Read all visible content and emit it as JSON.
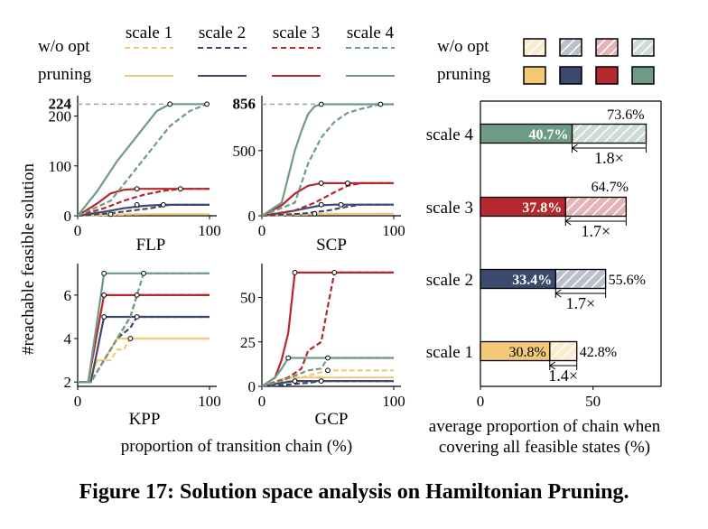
{
  "legend": {
    "scale_labels": [
      "scale 1",
      "scale 2",
      "scale 3",
      "scale 4"
    ],
    "row_labels": [
      "w/o opt",
      "pruning"
    ],
    "bar_row_labels": [
      "w/o opt",
      "pruning"
    ]
  },
  "colors": {
    "scale 1": "#f2c978",
    "scale 2": "#3b4a6e",
    "scale 3": "#b5282e",
    "scale 4": "#6f9b86",
    "ref_line": "#a0a0a0"
  },
  "chart_data": [
    {
      "type": "line",
      "id": "FLP",
      "title": "FLP",
      "ylabel": "#reachable feasible solution",
      "xlim": [
        0,
        100
      ],
      "ylim": [
        0,
        230
      ],
      "xticks": [
        "0",
        "100"
      ],
      "yticks": [
        "0",
        "100",
        "200"
      ],
      "ref_value": 224,
      "ref_label": "224",
      "series": [
        {
          "name": "scale 1",
          "variant": "w/o opt",
          "x": [
            0,
            30,
            60,
            100
          ],
          "y": [
            0,
            2,
            3,
            3
          ]
        },
        {
          "name": "scale 1",
          "variant": "pruning",
          "x": [
            0,
            20,
            40,
            100
          ],
          "y": [
            0,
            2,
            3,
            3
          ]
        },
        {
          "name": "scale 2",
          "variant": "w/o opt",
          "x": [
            0,
            25,
            40,
            55,
            70,
            100
          ],
          "y": [
            0,
            5,
            10,
            15,
            22,
            22
          ]
        },
        {
          "name": "scale 2",
          "variant": "pruning",
          "x": [
            0,
            20,
            35,
            50,
            65,
            100
          ],
          "y": [
            0,
            8,
            15,
            20,
            22,
            22
          ]
        },
        {
          "name": "scale 3",
          "variant": "w/o opt",
          "x": [
            0,
            20,
            35,
            50,
            65,
            78,
            100
          ],
          "y": [
            0,
            15,
            30,
            42,
            50,
            54,
            54
          ]
        },
        {
          "name": "scale 3",
          "variant": "pruning",
          "x": [
            0,
            15,
            25,
            35,
            45,
            100
          ],
          "y": [
            0,
            25,
            45,
            52,
            54,
            54
          ]
        },
        {
          "name": "scale 4",
          "variant": "w/o opt",
          "x": [
            0,
            25,
            40,
            55,
            70,
            85,
            98,
            100
          ],
          "y": [
            0,
            30,
            80,
            130,
            180,
            210,
            224,
            224
          ]
        },
        {
          "name": "scale 4",
          "variant": "pruning",
          "x": [
            0,
            15,
            30,
            45,
            60,
            70,
            100
          ],
          "y": [
            0,
            50,
            110,
            160,
            210,
            224,
            224
          ]
        }
      ],
      "markers": [
        {
          "x": 25,
          "y": 3
        },
        {
          "x": 65,
          "y": 22
        },
        {
          "x": 45,
          "y": 22
        },
        {
          "x": 78,
          "y": 54
        },
        {
          "x": 45,
          "y": 54
        },
        {
          "x": 98,
          "y": 224
        },
        {
          "x": 70,
          "y": 224
        }
      ]
    },
    {
      "type": "line",
      "id": "SCP",
      "title": "SCP",
      "ylabel": "",
      "xlim": [
        0,
        100
      ],
      "ylim": [
        0,
        880
      ],
      "xticks": [
        "0",
        "100"
      ],
      "yticks": [
        "0",
        "500"
      ],
      "ref_value": 856,
      "ref_label": "856",
      "series": [
        {
          "name": "scale 1",
          "variant": "w/o opt",
          "x": [
            0,
            30,
            60,
            100
          ],
          "y": [
            0,
            8,
            15,
            15
          ]
        },
        {
          "name": "scale 1",
          "variant": "pruning",
          "x": [
            0,
            20,
            40,
            100
          ],
          "y": [
            0,
            10,
            15,
            15
          ]
        },
        {
          "name": "scale 2",
          "variant": "w/o opt",
          "x": [
            0,
            30,
            50,
            65,
            75,
            100
          ],
          "y": [
            0,
            15,
            40,
            70,
            85,
            85
          ]
        },
        {
          "name": "scale 2",
          "variant": "pruning",
          "x": [
            0,
            20,
            35,
            45,
            55,
            100
          ],
          "y": [
            0,
            30,
            60,
            80,
            85,
            85
          ]
        },
        {
          "name": "scale 3",
          "variant": "w/o opt",
          "x": [
            0,
            25,
            40,
            55,
            65,
            75,
            100
          ],
          "y": [
            0,
            40,
            100,
            180,
            230,
            250,
            250
          ]
        },
        {
          "name": "scale 3",
          "variant": "pruning",
          "x": [
            0,
            15,
            25,
            35,
            45,
            100
          ],
          "y": [
            0,
            80,
            170,
            230,
            250,
            250
          ]
        },
        {
          "name": "scale 4",
          "variant": "w/o opt",
          "x": [
            0,
            25,
            35,
            45,
            55,
            65,
            75,
            90,
            100
          ],
          "y": [
            0,
            100,
            400,
            600,
            720,
            790,
            820,
            856,
            856
          ]
        },
        {
          "name": "scale 4",
          "variant": "pruning",
          "x": [
            0,
            15,
            20,
            25,
            30,
            35,
            40,
            45,
            100
          ],
          "y": [
            0,
            100,
            300,
            500,
            650,
            780,
            840,
            856,
            856
          ]
        }
      ],
      "markers": [
        {
          "x": 40,
          "y": 15
        },
        {
          "x": 60,
          "y": 85
        },
        {
          "x": 45,
          "y": 85
        },
        {
          "x": 65,
          "y": 250
        },
        {
          "x": 45,
          "y": 250
        },
        {
          "x": 90,
          "y": 856
        },
        {
          "x": 45,
          "y": 856
        }
      ]
    },
    {
      "type": "line",
      "id": "KPP",
      "title": "KPP",
      "ylabel": "",
      "xlim": [
        0,
        100
      ],
      "ylim": [
        1.8,
        7.2
      ],
      "xticks": [
        "0",
        "100"
      ],
      "yticks": [
        "2",
        "4",
        "6"
      ],
      "ref_value": null,
      "ref_label": "",
      "series": [
        {
          "name": "scale 1",
          "variant": "w/o opt",
          "x": [
            0,
            10,
            15,
            20,
            25,
            30,
            35,
            40,
            100
          ],
          "y": [
            2,
            2,
            2.5,
            3,
            3,
            3.5,
            3.5,
            4,
            4
          ]
        },
        {
          "name": "scale 1",
          "variant": "pruning",
          "x": [
            0,
            8,
            15,
            20,
            25,
            30,
            100
          ],
          "y": [
            2,
            2,
            3,
            3,
            3.5,
            4,
            4
          ]
        },
        {
          "name": "scale 2",
          "variant": "w/o opt",
          "x": [
            0,
            10,
            20,
            30,
            40,
            45,
            100
          ],
          "y": [
            2,
            2,
            3,
            4,
            4.5,
            5,
            5
          ]
        },
        {
          "name": "scale 2",
          "variant": "pruning",
          "x": [
            0,
            10,
            20,
            100
          ],
          "y": [
            2,
            2,
            5,
            5
          ]
        },
        {
          "name": "scale 3",
          "variant": "w/o opt",
          "x": [
            0,
            10,
            20,
            30,
            40,
            45,
            100
          ],
          "y": [
            2,
            2,
            3,
            4,
            5,
            6,
            6
          ]
        },
        {
          "name": "scale 3",
          "variant": "pruning",
          "x": [
            0,
            8,
            20,
            100
          ],
          "y": [
            2,
            2,
            6,
            6
          ]
        },
        {
          "name": "scale 4",
          "variant": "w/o opt",
          "x": [
            0,
            10,
            20,
            30,
            40,
            50,
            100
          ],
          "y": [
            2,
            2,
            3,
            4,
            5,
            7,
            7
          ]
        },
        {
          "name": "scale 4",
          "variant": "pruning",
          "x": [
            0,
            8,
            20,
            100
          ],
          "y": [
            2,
            2,
            7,
            7
          ]
        }
      ],
      "markers": [
        {
          "x": 40,
          "y": 4
        },
        {
          "x": 45,
          "y": 5
        },
        {
          "x": 20,
          "y": 5
        },
        {
          "x": 45,
          "y": 6
        },
        {
          "x": 20,
          "y": 6
        },
        {
          "x": 50,
          "y": 7
        },
        {
          "x": 20,
          "y": 7
        }
      ]
    },
    {
      "type": "line",
      "id": "GCP",
      "title": "GCP",
      "ylabel": "",
      "xlim": [
        0,
        100
      ],
      "ylim": [
        0,
        66
      ],
      "xticks": [
        "0",
        "100"
      ],
      "yticks": [
        "0",
        "25",
        "50"
      ],
      "ref_value": null,
      "ref_label": "",
      "series": [
        {
          "name": "scale 1",
          "variant": "w/o opt",
          "x": [
            0,
            10,
            20,
            30,
            40,
            50,
            100
          ],
          "y": [
            0,
            1,
            3,
            5,
            7,
            9,
            9
          ]
        },
        {
          "name": "scale 1",
          "variant": "pruning",
          "x": [
            0,
            10,
            20,
            100
          ],
          "y": [
            0,
            2,
            5,
            5
          ]
        },
        {
          "name": "scale 2",
          "variant": "w/o opt",
          "x": [
            0,
            20,
            35,
            45,
            100
          ],
          "y": [
            0,
            1,
            2,
            3,
            3
          ]
        },
        {
          "name": "scale 2",
          "variant": "pruning",
          "x": [
            0,
            15,
            25,
            100
          ],
          "y": [
            0,
            2,
            3,
            3
          ]
        },
        {
          "name": "scale 3",
          "variant": "w/o opt",
          "x": [
            0,
            20,
            30,
            35,
            45,
            50,
            55,
            100
          ],
          "y": [
            0,
            5,
            10,
            20,
            25,
            45,
            64,
            64
          ]
        },
        {
          "name": "scale 3",
          "variant": "pruning",
          "x": [
            0,
            10,
            15,
            20,
            25,
            100
          ],
          "y": [
            0,
            5,
            15,
            30,
            64,
            64
          ]
        },
        {
          "name": "scale 4",
          "variant": "w/o opt",
          "x": [
            0,
            15,
            25,
            35,
            45,
            50,
            100
          ],
          "y": [
            0,
            3,
            6,
            9,
            10,
            16,
            16
          ]
        },
        {
          "name": "scale 4",
          "variant": "pruning",
          "x": [
            0,
            10,
            15,
            20,
            100
          ],
          "y": [
            0,
            5,
            10,
            16,
            16
          ]
        }
      ],
      "markers": [
        {
          "x": 50,
          "y": 9
        },
        {
          "x": 45,
          "y": 3
        },
        {
          "x": 25,
          "y": 3
        },
        {
          "x": 55,
          "y": 64
        },
        {
          "x": 25,
          "y": 64
        },
        {
          "x": 50,
          "y": 16
        },
        {
          "x": 20,
          "y": 16
        }
      ]
    },
    {
      "type": "bar",
      "id": "chain-bars",
      "categories": [
        "scale 4",
        "scale 3",
        "scale 2",
        "scale 1"
      ],
      "pruning": [
        40.7,
        37.8,
        33.4,
        30.8
      ],
      "wo_opt": [
        73.6,
        64.7,
        55.6,
        42.8
      ],
      "pruning_labels": [
        "40.7%",
        "37.8%",
        "33.4%",
        "30.8%"
      ],
      "wo_opt_labels": [
        "73.6%",
        "64.7%",
        "55.6%",
        "42.8%"
      ],
      "ratio_labels": [
        "1.8×",
        "1.7×",
        "1.7×",
        "1.4×"
      ],
      "xlim": [
        0,
        77
      ],
      "xticks": [
        "0",
        "50"
      ],
      "xlabel_lines": [
        "average proportion of chain when",
        "covering all feasible states (%)"
      ]
    }
  ],
  "shared_xlabel": "proportion of transition chain (%)",
  "shared_ylabel": "#reachable feasible solution",
  "caption": "Figure 17: Solution space analysis on Hamiltonian Pruning."
}
